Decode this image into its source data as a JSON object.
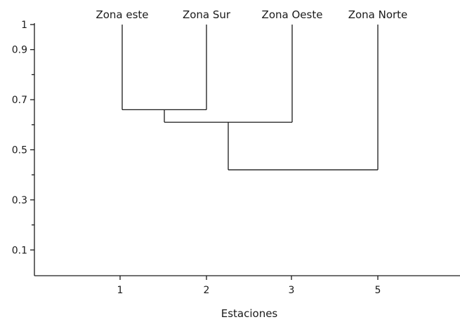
{
  "chart_data": {
    "type": "dendrogram",
    "title": "",
    "xlabel": "Estaciones",
    "ylabel": "",
    "ylim": [
      0,
      1
    ],
    "grid": false,
    "y_ticks": [
      1,
      0.9,
      0.7,
      0.5,
      0.3,
      0.1
    ],
    "y_tick_labels": [
      "1",
      "0.9",
      "0.7",
      "0.5",
      "0.3",
      "0.1"
    ],
    "y_minor_ticks": [
      0.8,
      0.6,
      0.4,
      0.2
    ],
    "leaves": [
      {
        "label": "Zona este",
        "station": "1",
        "x": 1
      },
      {
        "label": "Zona Sur",
        "station": "2",
        "x": 2
      },
      {
        "label": "Zona Oeste",
        "station": "3",
        "x": 3
      },
      {
        "label": "Zona Norte",
        "station": "5",
        "x": 4
      }
    ],
    "merges": [
      {
        "left": "Zona este",
        "right": "Zona Sur",
        "height": 0.66
      },
      {
        "left": "Zona este + Zona Sur",
        "right": "Zona Oeste",
        "height": 0.61
      },
      {
        "left": "Zona este + Zona Sur + Zona Oeste",
        "right": "Zona Norte",
        "height": 0.42
      }
    ]
  }
}
